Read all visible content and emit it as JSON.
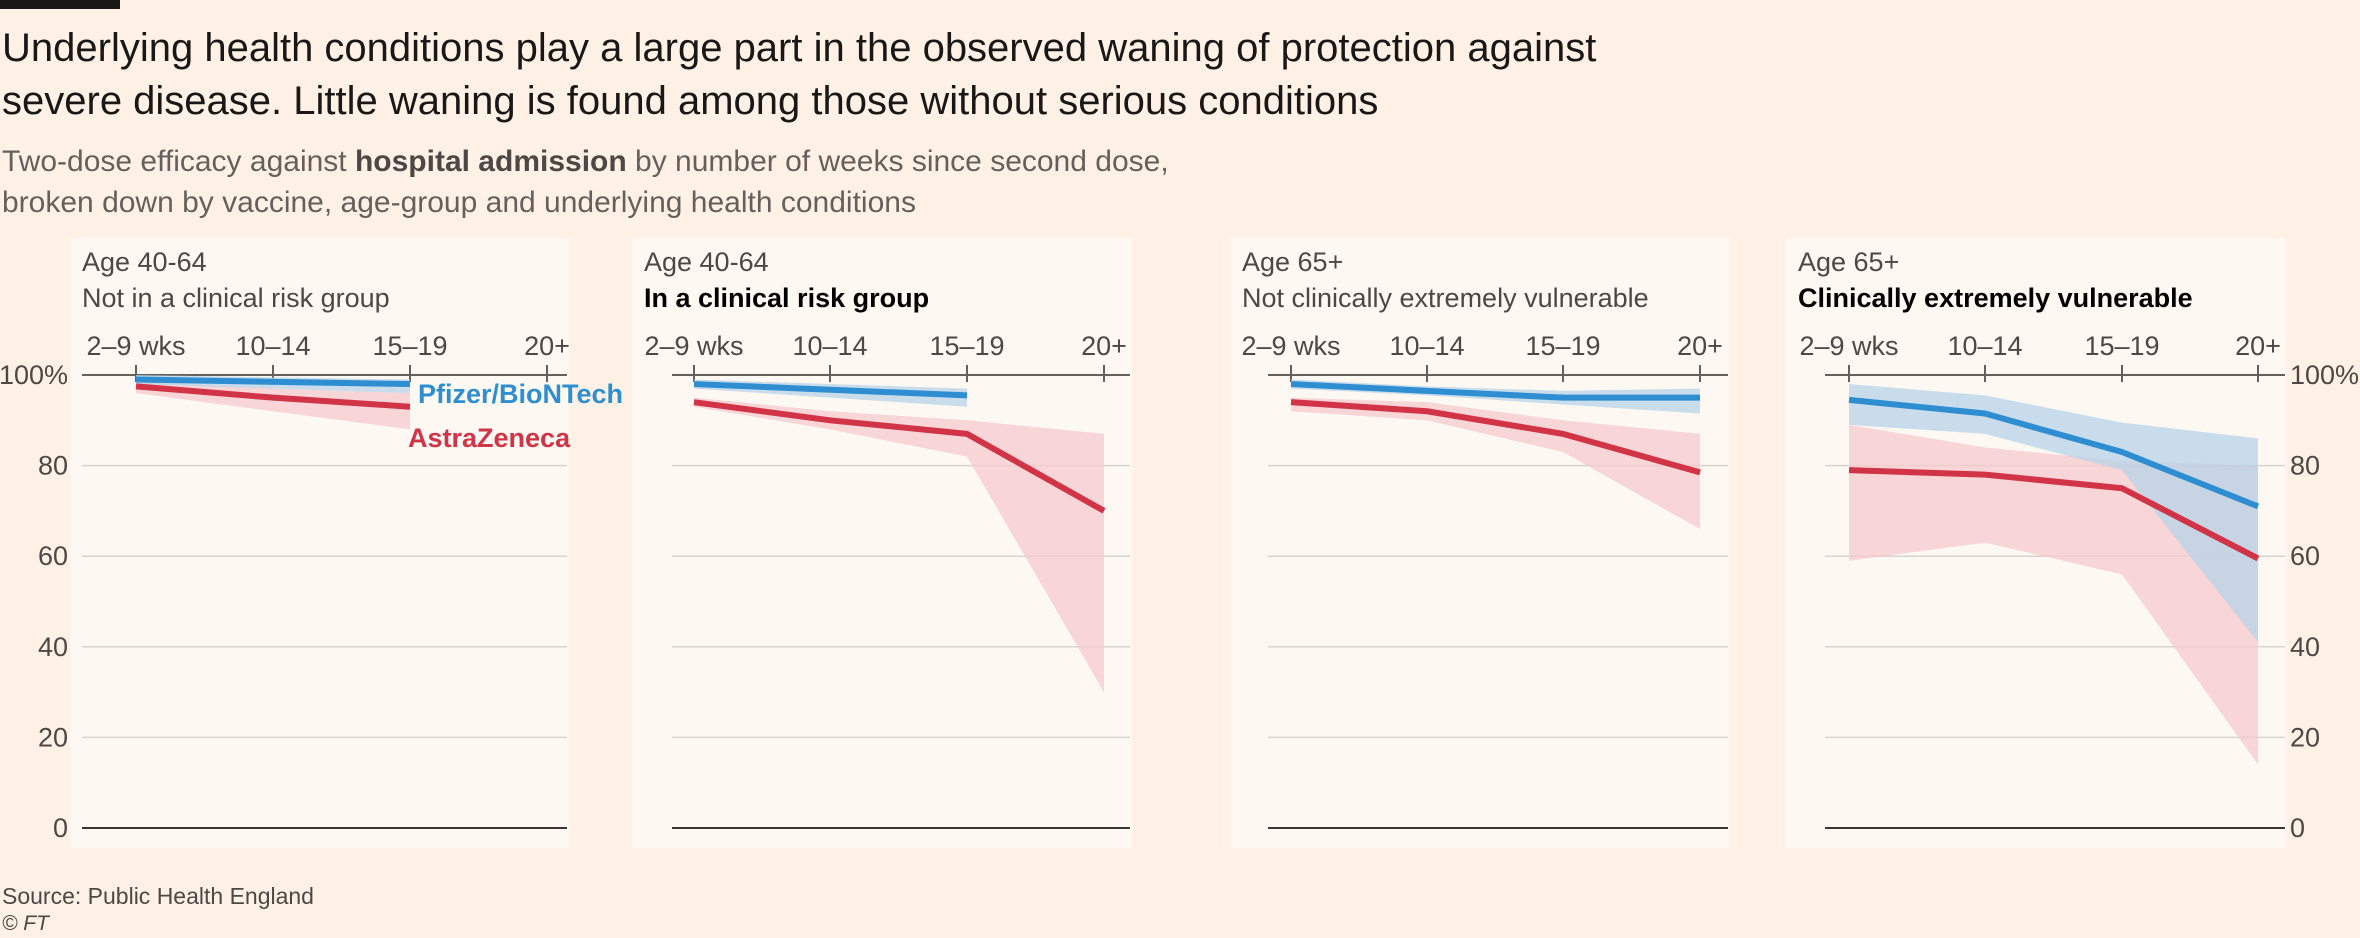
{
  "title": "Underlying health conditions play a large part in the observed waning of protection against severe disease. Little waning is found among those without serious conditions",
  "subtitle": {
    "part1": "Two-dose efficacy against ",
    "bold": "hospital admission",
    "part2": " by number of weeks since second dose,",
    "line2": "broken down by vaccine, age-group and underlying health conditions"
  },
  "source": "Source: Public Health England",
  "copyright": "© FT",
  "colors": {
    "pfizer": "#2e8ed1",
    "astrazeneca": "#d13447",
    "pfizer_band": "#b6d3e8",
    "az_band": "#f5c9cd"
  },
  "chart_data": {
    "type": "line",
    "x_categories": [
      "2–9 wks",
      "10–14",
      "15–19",
      "20+"
    ],
    "y_ticks": [
      "100%",
      "80",
      "60",
      "40",
      "20",
      "0"
    ],
    "ylim": [
      0,
      100
    ],
    "legend": {
      "pfizer": "Pfizer/BioNTech",
      "astrazeneca": "AstraZeneca"
    },
    "panels": [
      {
        "label": "Age 40-64",
        "subtitle": "Not in a clinical risk group",
        "subtitle_bold": false,
        "series": [
          {
            "name": "Pfizer/BioNTech",
            "key": "pfizer",
            "values": [
              99,
              null,
              98
            ],
            "lower": [
              98,
              null,
              96
            ],
            "upper": [
              100,
              null,
              99
            ]
          },
          {
            "name": "AstraZeneca",
            "key": "astrazeneca",
            "values": [
              97.5,
              95,
              93
            ],
            "lower": [
              96,
              92,
              88
            ],
            "upper": [
              98.5,
              97,
              96
            ]
          }
        ]
      },
      {
        "label": "Age 40-64",
        "subtitle": "In a clinical risk group",
        "subtitle_bold": true,
        "series": [
          {
            "name": "Pfizer/BioNTech",
            "key": "pfizer",
            "values": [
              98,
              null,
              95.5
            ],
            "lower": [
              97,
              null,
              93
            ],
            "upper": [
              99,
              null,
              97
            ]
          },
          {
            "name": "AstraZeneca",
            "key": "astrazeneca",
            "values": [
              94,
              90,
              87,
              70
            ],
            "lower": [
              93,
              88,
              82,
              30
            ],
            "upper": [
              95,
              92,
              90,
              87
            ]
          }
        ]
      },
      {
        "label": "Age 65+",
        "subtitle": "Not clinically extremely vulnerable",
        "subtitle_bold": false,
        "series": [
          {
            "name": "Pfizer/BioNTech",
            "key": "pfizer",
            "values": [
              98,
              96.5,
              95,
              95
            ],
            "lower": [
              97,
              95.5,
              93.5,
              91.5
            ],
            "upper": [
              99,
              97.5,
              96.5,
              97
            ]
          },
          {
            "name": "AstraZeneca",
            "key": "astrazeneca",
            "values": [
              94,
              92,
              87,
              78.5
            ],
            "lower": [
              92,
              90,
              83,
              66
            ],
            "upper": [
              95,
              94,
              90,
              87
            ]
          }
        ]
      },
      {
        "label": "Age 65+",
        "subtitle": "Clinically extremely vulnerable",
        "subtitle_bold": true,
        "series": [
          {
            "name": "Pfizer/BioNTech",
            "key": "pfizer",
            "values": [
              94.5,
              91.5,
              83,
              71
            ],
            "lower": [
              89,
              87,
              79,
              41
            ],
            "upper": [
              98,
              95.5,
              89.5,
              86
            ]
          },
          {
            "name": "AstraZeneca",
            "key": "astrazeneca",
            "values": [
              79,
              78,
              75,
              59.5
            ],
            "lower": [
              59,
              63,
              56,
              14
            ],
            "upper": [
              89,
              84,
              81,
              80
            ]
          }
        ]
      }
    ]
  }
}
